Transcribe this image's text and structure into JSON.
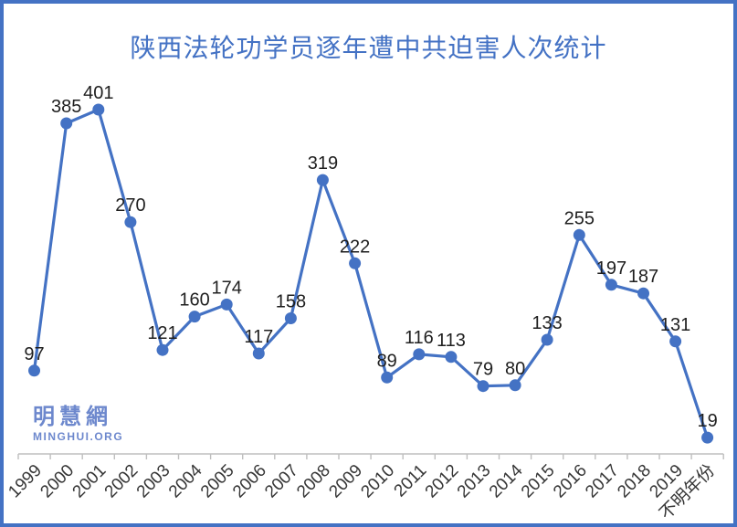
{
  "chart_data": {
    "type": "line",
    "title": "陕西法轮功学员逐年遭中共迫害人次统计",
    "categories": [
      "1999",
      "2000",
      "2001",
      "2002",
      "2003",
      "2004",
      "2005",
      "2006",
      "2007",
      "2008",
      "2009",
      "2010",
      "2011",
      "2012",
      "2013",
      "2014",
      "2015",
      "2016",
      "2017",
      "2018",
      "2019",
      "不明年份"
    ],
    "values": [
      97,
      385,
      401,
      270,
      121,
      160,
      174,
      117,
      158,
      319,
      222,
      89,
      116,
      113,
      79,
      80,
      133,
      255,
      197,
      187,
      131,
      19
    ],
    "xlabel": "",
    "ylabel": "",
    "ylim": [
      0,
      420
    ],
    "grid": false,
    "legend_position": "none",
    "data_labels_visible": true,
    "x_tick_rotation_deg": -45,
    "line_color": "#4472C4",
    "marker_color": "#4472C4",
    "label_color": "#1f1f1f",
    "axis_color": "#BFBFBF",
    "tick_label_color": "#363636",
    "title_color": "#4472C4",
    "frame_border_color": "#4472C4"
  },
  "watermark": {
    "logo": "明慧網",
    "site": "MINGHUI.ORG",
    "color": "#6D88CD"
  }
}
